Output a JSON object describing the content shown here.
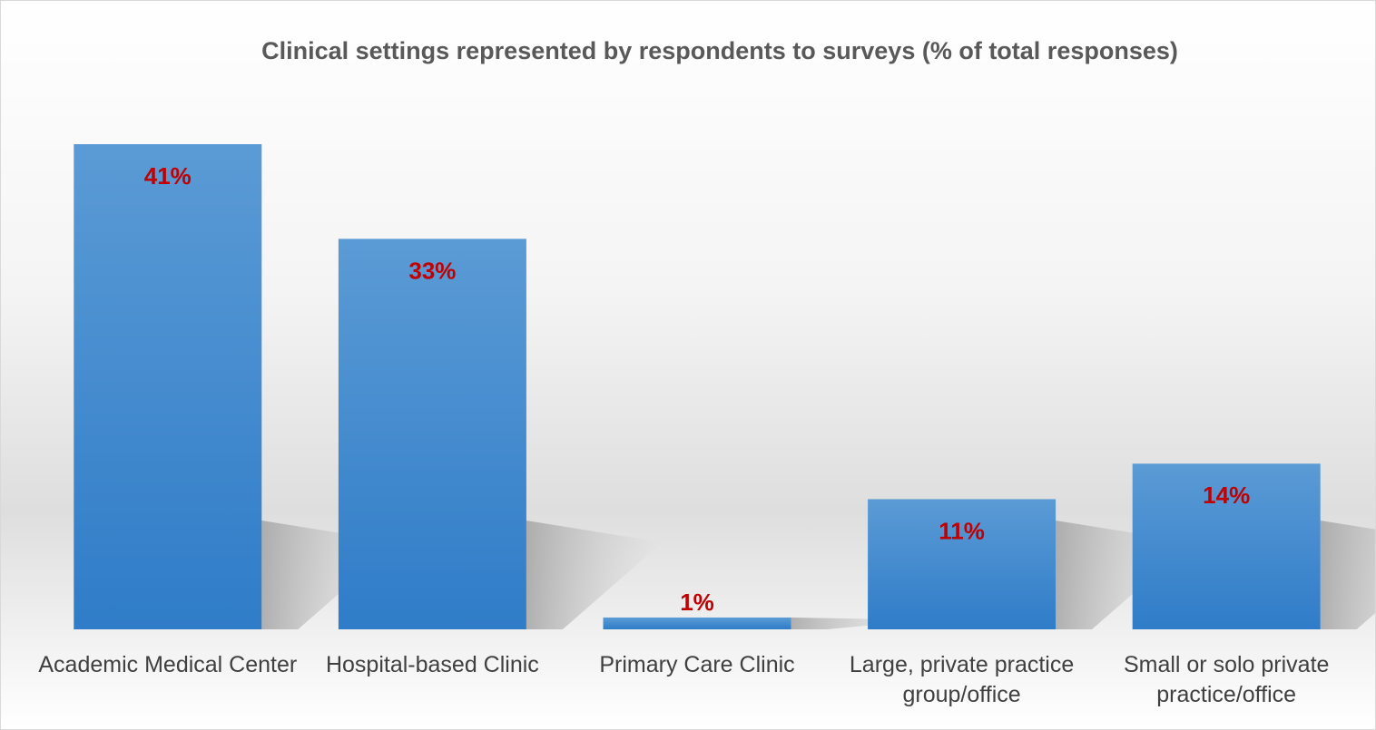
{
  "chart_data": {
    "type": "bar",
    "title": "Clinical settings represented by respondents to surveys (% of total responses)",
    "categories": [
      "Academic Medical Center",
      "Hospital-based Clinic",
      "Primary Care Clinic",
      "Large, private practice group/office",
      "Small or solo private practice/office"
    ],
    "values": [
      41,
      33,
      1,
      11,
      14
    ],
    "value_labels": [
      "41%",
      "33%",
      "1%",
      "11%",
      "14%"
    ],
    "color": "#4a8fd3",
    "label_color": "#c00000"
  }
}
